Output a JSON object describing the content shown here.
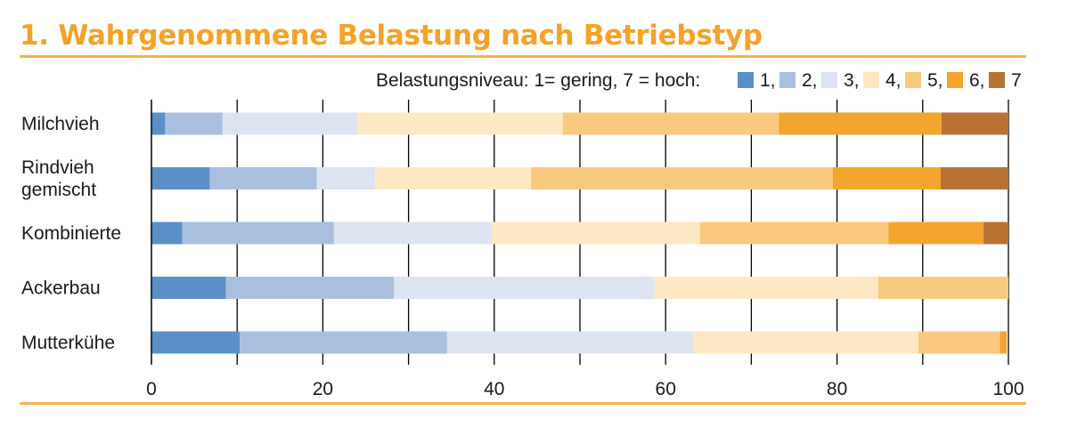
{
  "chart_data": {
    "type": "bar",
    "orientation": "horizontal",
    "stacked": true,
    "title": "1. Wahrgenommene Belastung nach Betriebstyp",
    "legend_title": "Belastungsniveau: 1= gering, 7 = hoch:",
    "legend_position": "top-right",
    "categories": [
      [
        "Milchvieh"
      ],
      [
        "Rindvieh",
        "gemischt"
      ],
      [
        "Kombinierte"
      ],
      [
        "Ackerbau"
      ],
      [
        "Mutterkühe"
      ]
    ],
    "series": [
      {
        "name": "1",
        "legend_label": "1,",
        "color": "#5b8fc7",
        "values": [
          1.6,
          6.8,
          3.6,
          8.7,
          10.3
        ]
      },
      {
        "name": "2",
        "legend_label": "2,",
        "color": "#a8bfe0",
        "values": [
          6.7,
          12.5,
          17.7,
          19.6,
          24.2
        ]
      },
      {
        "name": "3",
        "legend_label": "3,",
        "color": "#dce4f2",
        "values": [
          15.7,
          6.8,
          18.4,
          30.4,
          28.7
        ]
      },
      {
        "name": "4",
        "legend_label": "4,",
        "color": "#fde8c3",
        "values": [
          24.0,
          18.2,
          24.3,
          26.1,
          26.3
        ]
      },
      {
        "name": "5",
        "legend_label": "5,",
        "color": "#f9c980",
        "values": [
          25.2,
          35.2,
          22.0,
          15.2,
          9.5
        ]
      },
      {
        "name": "6",
        "legend_label": "6,",
        "color": "#f4a52f",
        "values": [
          19.0,
          12.6,
          11.1,
          0,
          0.8
        ]
      },
      {
        "name": "7",
        "legend_label": "7",
        "color": "#b87333",
        "values": [
          7.8,
          7.9,
          2.9,
          0,
          0
        ]
      }
    ],
    "xlim": [
      0,
      100
    ],
    "xticks": [
      "0",
      "20",
      "40",
      "60",
      "80",
      "100"
    ],
    "xlabel": "",
    "ylabel": "",
    "grid": "vertical gridlines every 10"
  }
}
